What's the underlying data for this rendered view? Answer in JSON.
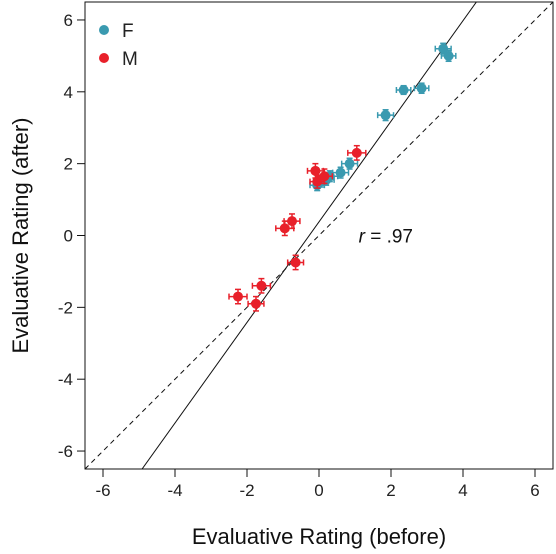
{
  "chart_data": {
    "type": "scatter",
    "xlabel": "Evaluative Rating (before)",
    "ylabel": "Evaluative Rating (after)",
    "xlim": [
      -6.5,
      6.5
    ],
    "ylim": [
      -6.5,
      6.5
    ],
    "xticks": [
      -6,
      -4,
      -2,
      0,
      2,
      4,
      6
    ],
    "yticks": [
      -6,
      -4,
      -2,
      0,
      2,
      4,
      6
    ],
    "grid": false,
    "legend_position": "top-left",
    "annotation": {
      "r_label": "r",
      "value_label": " = .97",
      "x": 1.1,
      "y": 0
    },
    "reference_lines": [
      {
        "name": "regression",
        "style": "solid",
        "slope": 1.4,
        "intercept": 0.38
      },
      {
        "name": "identity",
        "style": "dashed",
        "slope": 1.0,
        "intercept": 0.0
      }
    ],
    "series": [
      {
        "name": "F",
        "color": "#3a9ab0",
        "points": [
          {
            "x": 3.45,
            "y": 5.2,
            "xerr": 0.22,
            "yerr": 0.15
          },
          {
            "x": 3.6,
            "y": 5.0,
            "xerr": 0.2,
            "yerr": 0.15
          },
          {
            "x": 2.35,
            "y": 4.05,
            "xerr": 0.2,
            "yerr": 0.12
          },
          {
            "x": 2.85,
            "y": 4.1,
            "xerr": 0.2,
            "yerr": 0.14
          },
          {
            "x": 1.85,
            "y": 3.35,
            "xerr": 0.22,
            "yerr": 0.15
          },
          {
            "x": 0.85,
            "y": 2.0,
            "xerr": 0.22,
            "yerr": 0.15
          },
          {
            "x": 0.6,
            "y": 1.75,
            "xerr": 0.22,
            "yerr": 0.15
          },
          {
            "x": 0.3,
            "y": 1.65,
            "xerr": 0.22,
            "yerr": 0.15
          },
          {
            "x": 0.2,
            "y": 1.55,
            "xerr": 0.22,
            "yerr": 0.15
          },
          {
            "x": 0.05,
            "y": 1.5,
            "xerr": 0.2,
            "yerr": 0.15
          },
          {
            "x": -0.05,
            "y": 1.4,
            "xerr": 0.2,
            "yerr": 0.15
          }
        ]
      },
      {
        "name": "M",
        "color": "#e8202a",
        "points": [
          {
            "x": -0.1,
            "y": 1.8,
            "xerr": 0.22,
            "yerr": 0.2
          },
          {
            "x": -0.05,
            "y": 1.5,
            "xerr": 0.2,
            "yerr": 0.18
          },
          {
            "x": 0.15,
            "y": 1.65,
            "xerr": 0.22,
            "yerr": 0.2
          },
          {
            "x": 1.05,
            "y": 2.3,
            "xerr": 0.25,
            "yerr": 0.2
          },
          {
            "x": -0.75,
            "y": 0.4,
            "xerr": 0.22,
            "yerr": 0.2
          },
          {
            "x": -0.95,
            "y": 0.2,
            "xerr": 0.25,
            "yerr": 0.2
          },
          {
            "x": -0.65,
            "y": -0.75,
            "xerr": 0.22,
            "yerr": 0.2
          },
          {
            "x": -1.6,
            "y": -1.4,
            "xerr": 0.25,
            "yerr": 0.2
          },
          {
            "x": -2.25,
            "y": -1.7,
            "xerr": 0.25,
            "yerr": 0.2
          },
          {
            "x": -1.75,
            "y": -1.9,
            "xerr": 0.22,
            "yerr": 0.2
          }
        ]
      }
    ]
  }
}
